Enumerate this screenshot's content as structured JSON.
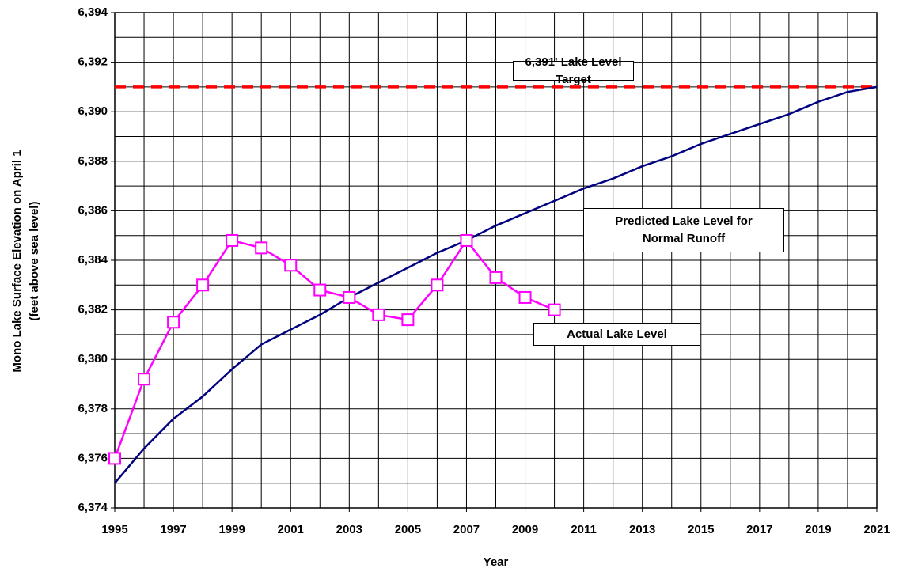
{
  "chart_data": {
    "type": "line",
    "xlabel": "Year",
    "ylabel": [
      "Mono Lake Surface Elevation on April 1",
      "(feet above sea level)"
    ],
    "xlim": [
      1995,
      2021
    ],
    "xticks": [
      1995,
      1997,
      1999,
      2001,
      2003,
      2005,
      2007,
      2009,
      2011,
      2013,
      2015,
      2017,
      2019,
      2021
    ],
    "xminor_ticks": [
      1996,
      1998,
      2000,
      2002,
      2004,
      2006,
      2008,
      2010,
      2012,
      2014,
      2016,
      2018,
      2020
    ],
    "ylim": [
      6374,
      6394
    ],
    "yticks": [
      {
        "value": 6374,
        "label": "6,374"
      },
      {
        "value": 6376,
        "label": "6,376"
      },
      {
        "value": 6378,
        "label": "6,378"
      },
      {
        "value": 6380,
        "label": "6,380"
      },
      {
        "value": 6382,
        "label": "6,382"
      },
      {
        "value": 6384,
        "label": "6,384"
      },
      {
        "value": 6386,
        "label": "6,386"
      },
      {
        "value": 6388,
        "label": "6,388"
      },
      {
        "value": 6390,
        "label": "6,390"
      },
      {
        "value": 6392,
        "label": "6,392"
      },
      {
        "value": 6394,
        "label": "6,394"
      }
    ],
    "yminor_ticks": [
      6375,
      6377,
      6379,
      6381,
      6383,
      6385,
      6387,
      6389,
      6391,
      6393
    ],
    "grid": true,
    "reference_line": {
      "value": 6391,
      "color": "#ff0000",
      "label": "6,391' Lake Level Target"
    },
    "series": [
      {
        "name": "Predicted Lake Level for Normal Runoff",
        "color": "#000080",
        "marker": false,
        "x": [
          1995,
          1996,
          1997,
          1998,
          1999,
          2000,
          2001,
          2002,
          2003,
          2004,
          2005,
          2006,
          2007,
          2008,
          2009,
          2010,
          2011,
          2012,
          2013,
          2014,
          2015,
          2016,
          2017,
          2018,
          2019,
          2020,
          2021
        ],
        "values": [
          6375.0,
          6376.4,
          6377.6,
          6378.5,
          6379.6,
          6380.6,
          6381.2,
          6381.8,
          6382.5,
          6383.1,
          6383.7,
          6384.3,
          6384.8,
          6385.4,
          6385.9,
          6386.4,
          6386.9,
          6387.3,
          6387.8,
          6388.2,
          6388.7,
          6389.1,
          6389.5,
          6389.9,
          6390.4,
          6390.8,
          6391.0
        ]
      },
      {
        "name": "Actual Lake Level",
        "color": "#ff00ff",
        "marker": true,
        "x": [
          1995,
          1996,
          1997,
          1998,
          1999,
          2000,
          2001,
          2002,
          2003,
          2004,
          2005,
          2006,
          2007,
          2008,
          2009,
          2010
        ],
        "values": [
          6376.0,
          6379.2,
          6381.5,
          6383.0,
          6384.8,
          6384.5,
          6383.8,
          6382.8,
          6382.5,
          6381.8,
          6381.6,
          6383.0,
          6384.8,
          6383.3,
          6382.5,
          6382.0
        ]
      }
    ]
  }
}
